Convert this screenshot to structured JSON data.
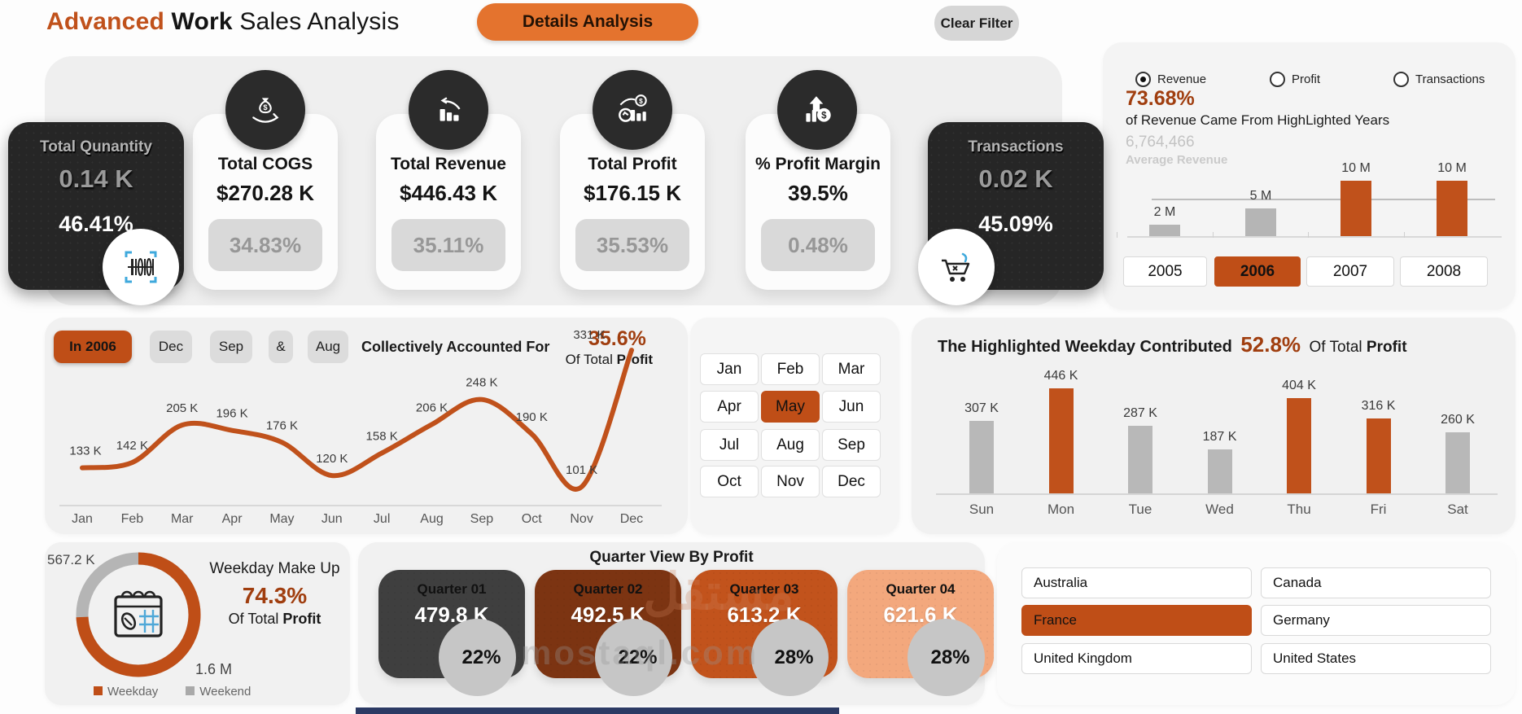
{
  "header": {
    "title_accent": "Advanced",
    "title_bold": "Work",
    "title_rest": "Sales Analysis",
    "details_button": "Details Analysis",
    "clear_filter_button": "Clear Filter"
  },
  "kpis": [
    {
      "title": "Total Qunantity",
      "value": "0.14 K",
      "percent": "46.41%",
      "style": "dark",
      "icon": "barcode-icon"
    },
    {
      "title": "Total COGS",
      "value": "$270.28 K",
      "percent": "34.83%",
      "style": "light",
      "icon": "money-hand-icon"
    },
    {
      "title": "Total Revenue",
      "value": "$446.43 K",
      "percent": "35.11%",
      "style": "light",
      "icon": "chart-trend-icon"
    },
    {
      "title": "Total Profit",
      "value": "$176.15 K",
      "percent": "35.53%",
      "style": "light",
      "icon": "profit-coin-icon"
    },
    {
      "title": "% Profit Margin",
      "value": "39.5%",
      "percent": "0.48%",
      "style": "light",
      "icon": "margin-arrow-icon"
    },
    {
      "title": "Transactions",
      "value": "0.02 K",
      "percent": "45.09%",
      "style": "dark",
      "icon": "cart-icon"
    }
  ],
  "year_panel": {
    "metrics": [
      {
        "label": "Revenue",
        "selected": true
      },
      {
        "label": "Profit",
        "selected": false
      },
      {
        "label": "Transactions",
        "selected": false
      }
    ],
    "highlight_percent": "73.68%",
    "highlight_caption": "of  Revenue Came From HighLighted Years",
    "average_value": "6,764,466",
    "average_label": "Average Revenue",
    "chart_data": {
      "type": "bar",
      "categories": [
        "2005",
        "2006",
        "2007",
        "2008"
      ],
      "values_millions": [
        2,
        5,
        10,
        10
      ],
      "value_labels": [
        "2 M",
        "5 M",
        "10 M",
        "10 M"
      ],
      "highlighted": [
        false,
        false,
        true,
        true
      ],
      "average_line_millions": 6.764466,
      "bar_color_normal": "#b5b5b5",
      "bar_color_highlight": "#C0511B"
    },
    "years": [
      {
        "label": "2005",
        "selected": false
      },
      {
        "label": "2006",
        "selected": true
      },
      {
        "label": "2007",
        "selected": false
      },
      {
        "label": "2008",
        "selected": false
      }
    ]
  },
  "trend_panel": {
    "chips": [
      {
        "label": "In 2006",
        "selected": true
      },
      {
        "label": "Dec",
        "selected": false
      },
      {
        "label": "Sep",
        "selected": false
      },
      {
        "label": "&",
        "selected": false
      },
      {
        "label": "Aug",
        "selected": false
      }
    ],
    "caption": "Collectively Accounted For",
    "percent": "35.6%",
    "of_total_prefix": "Of Total ",
    "of_total_bold": "Profit",
    "chart_data": {
      "type": "line",
      "x": [
        "Jan",
        "Feb",
        "Mar",
        "Apr",
        "May",
        "Jun",
        "Jul",
        "Aug",
        "Sep",
        "Oct",
        "Nov",
        "Dec"
      ],
      "values_k": [
        133,
        142,
        205,
        196,
        176,
        120,
        158,
        206,
        248,
        190,
        101,
        331
      ],
      "value_labels": [
        "133 K",
        "142 K",
        "205 K",
        "196 K",
        "176 K",
        "120 K",
        "158 K",
        "206 K",
        "248 K",
        "190 K",
        "101 K",
        "331 K"
      ],
      "line_color": "#C0511B"
    }
  },
  "month_grid": {
    "months": [
      {
        "label": "Jan",
        "selected": false
      },
      {
        "label": "Feb",
        "selected": false
      },
      {
        "label": "Mar",
        "selected": false
      },
      {
        "label": "Apr",
        "selected": false
      },
      {
        "label": "May",
        "selected": true
      },
      {
        "label": "Jun",
        "selected": false
      },
      {
        "label": "Jul",
        "selected": false
      },
      {
        "label": "Aug",
        "selected": false
      },
      {
        "label": "Sep",
        "selected": false
      },
      {
        "label": "Oct",
        "selected": false
      },
      {
        "label": "Nov",
        "selected": false
      },
      {
        "label": "Dec",
        "selected": false
      }
    ]
  },
  "weekday_panel": {
    "title": "The Highlighted Weekday Contributed",
    "percent": "52.8%",
    "of_total_prefix": "Of Total ",
    "of_total_bold": "Profit",
    "chart_data": {
      "type": "bar",
      "categories": [
        "Sun",
        "Mon",
        "Tue",
        "Wed",
        "Thu",
        "Fri",
        "Sat"
      ],
      "values_k": [
        307,
        446,
        287,
        187,
        404,
        316,
        260
      ],
      "value_labels": [
        "307 K",
        "446 K",
        "287 K",
        "187 K",
        "404 K",
        "316 K",
        "260 K"
      ],
      "highlighted": [
        false,
        true,
        false,
        false,
        true,
        true,
        false
      ],
      "bar_color_normal": "#b8b8b8",
      "bar_color_highlight": "#C0511B"
    }
  },
  "donut_panel": {
    "title": "Weekday Make Up",
    "percent": "74.3%",
    "of_total_prefix": "Of Total ",
    "of_total_bold": "Profit",
    "weekend_value": "567.2 K",
    "weekday_value": "1.6 M",
    "legend": [
      {
        "label": "Weekday",
        "color": "#C0511B"
      },
      {
        "label": "Weekend",
        "color": "#a9a9a9"
      }
    ],
    "chart_data": {
      "type": "donut",
      "segments": [
        {
          "name": "Weekday",
          "percent": 74.3,
          "value": "1.6 M",
          "color": "#BF4E17"
        },
        {
          "name": "Weekend",
          "percent": 25.7,
          "value": "567.2 K",
          "color": "#b5b5b5"
        }
      ]
    }
  },
  "quarter_panel": {
    "title_prefix": "Quarter View By ",
    "title_bold": "Profit",
    "quarters": [
      {
        "label": "Quarter 01",
        "value": "479.8 K",
        "percent": "22%",
        "color": "#3f3f3f"
      },
      {
        "label": "Quarter 02",
        "value": "492.5 K",
        "percent": "22%",
        "color": "#7c3412"
      },
      {
        "label": "Quarter 03",
        "value": "613.2 K",
        "percent": "28%",
        "color": "#C2531C"
      },
      {
        "label": "Quarter 04",
        "value": "621.6 K",
        "percent": "28%",
        "color": "#F3A87D"
      }
    ]
  },
  "country_panel": {
    "countries": [
      {
        "label": "Australia",
        "selected": false
      },
      {
        "label": "Canada",
        "selected": false
      },
      {
        "label": "France",
        "selected": true
      },
      {
        "label": "Germany",
        "selected": false
      },
      {
        "label": "United Kingdom",
        "selected": false
      },
      {
        "label": "United States",
        "selected": false
      }
    ]
  },
  "watermark": {
    "latin": "mostaql.com",
    "arabic": "مستقل"
  },
  "colors": {
    "accent": "#C0511B",
    "accent_text": "#A03E0F",
    "dark_card": "#262626"
  }
}
